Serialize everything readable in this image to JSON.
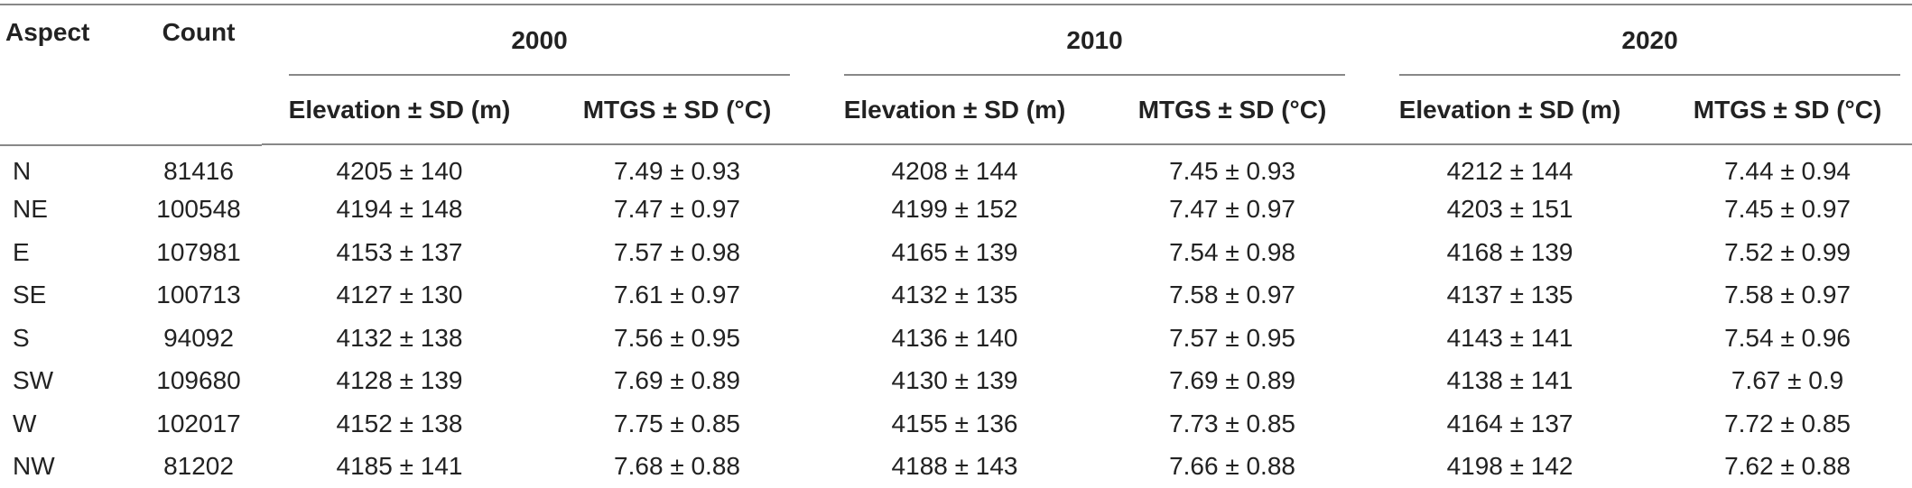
{
  "headers": {
    "aspect": "Aspect",
    "count": "Count",
    "years": [
      "2000",
      "2010",
      "2020"
    ],
    "sub": [
      "Elevation ± SD (m)",
      "MTGS ± SD (°C)"
    ]
  },
  "rows": [
    {
      "aspect": "N",
      "count": "81416",
      "cells": [
        "4205 ± 140",
        "7.49 ± 0.93",
        "4208 ± 144",
        "7.45 ± 0.93",
        "4212 ± 144",
        "7.44 ± 0.94"
      ]
    },
    {
      "aspect": "NE",
      "count": "100548",
      "cells": [
        "4194 ± 148",
        "7.47 ± 0.97",
        "4199 ± 152",
        "7.47 ± 0.97",
        "4203 ± 151",
        "7.45 ± 0.97"
      ]
    },
    {
      "aspect": "E",
      "count": "107981",
      "cells": [
        "4153 ± 137",
        "7.57 ± 0.98",
        "4165 ± 139",
        "7.54 ± 0.98",
        "4168 ± 139",
        "7.52 ± 0.99"
      ]
    },
    {
      "aspect": "SE",
      "count": "100713",
      "cells": [
        "4127 ± 130",
        "7.61 ± 0.97",
        "4132 ± 135",
        "7.58 ± 0.97",
        "4137 ± 135",
        "7.58 ± 0.97"
      ]
    },
    {
      "aspect": "S",
      "count": "94092",
      "cells": [
        "4132 ± 138",
        "7.56 ± 0.95",
        "4136 ± 140",
        "7.57 ± 0.95",
        "4143 ± 141",
        "7.54 ± 0.96"
      ]
    },
    {
      "aspect": "SW",
      "count": "109680",
      "cells": [
        "4128 ± 139",
        "7.69 ± 0.89",
        "4130 ± 139",
        "7.69 ± 0.89",
        "4138 ± 141",
        "7.67 ± 0.9"
      ]
    },
    {
      "aspect": "W",
      "count": "102017",
      "cells": [
        "4152 ± 138",
        "7.75 ± 0.85",
        "4155 ± 136",
        "7.73 ± 0.85",
        "4164 ± 137",
        "7.72 ± 0.85"
      ]
    },
    {
      "aspect": "NW",
      "count": "81202",
      "cells": [
        "4185 ± 141",
        "7.68 ± 0.88",
        "4188 ± 143",
        "7.66 ± 0.88",
        "4198 ± 142",
        "7.62 ± 0.88"
      ]
    }
  ]
}
